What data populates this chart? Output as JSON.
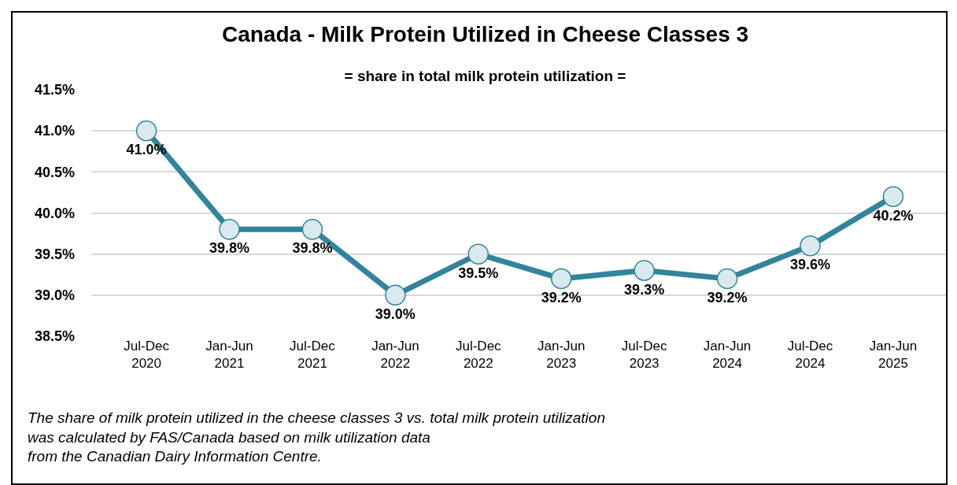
{
  "chart_data": {
    "type": "line",
    "title": "Canada - Milk Protein Utilized in Cheese Classes 3",
    "subtitle": "= share in total milk protein utilization =",
    "categories": [
      "Jul-Dec\n2020",
      "Jan-Jun\n2021",
      "Jul-Dec\n2021",
      "Jan-Jun\n2022",
      "Jul-Dec\n2022",
      "Jan-Jun\n2023",
      "Jul-Dec\n2023",
      "Jan-Jun\n2024",
      "Jul-Dec\n2024",
      "Jan-Jun\n2025"
    ],
    "series": [
      {
        "color": "#31849b",
        "values": [
          41.0,
          39.8,
          39.8,
          39.0,
          39.5,
          39.2,
          39.3,
          39.2,
          39.6,
          40.2
        ]
      }
    ],
    "value_labels": [
      "41.0%",
      "39.8%",
      "39.8%",
      "39.0%",
      "39.5%",
      "39.2%",
      "39.3%",
      "39.2%",
      "39.6%",
      "40.2%"
    ],
    "ylim": [
      38.5,
      41.5
    ],
    "yticks": [
      {
        "value": 38.5,
        "label": "38.5%"
      },
      {
        "value": 39.0,
        "label": "39.0%"
      },
      {
        "value": 39.5,
        "label": "39.5%"
      },
      {
        "value": 40.0,
        "label": "40.0%"
      },
      {
        "value": 40.5,
        "label": "40.5%"
      },
      {
        "value": 41.0,
        "label": "41.0%"
      },
      {
        "value": 41.5,
        "label": "41.5%"
      }
    ],
    "grid": "y",
    "marker": "circle",
    "line_style": "solid",
    "annotations": [
      "The share of milk protein utilized in the cheese classes 3 vs. total milk protein utilization\nwas calculated by FAS/Canada based on milk utilization data\nfrom the Canadian Dairy Information Centre."
    ]
  }
}
